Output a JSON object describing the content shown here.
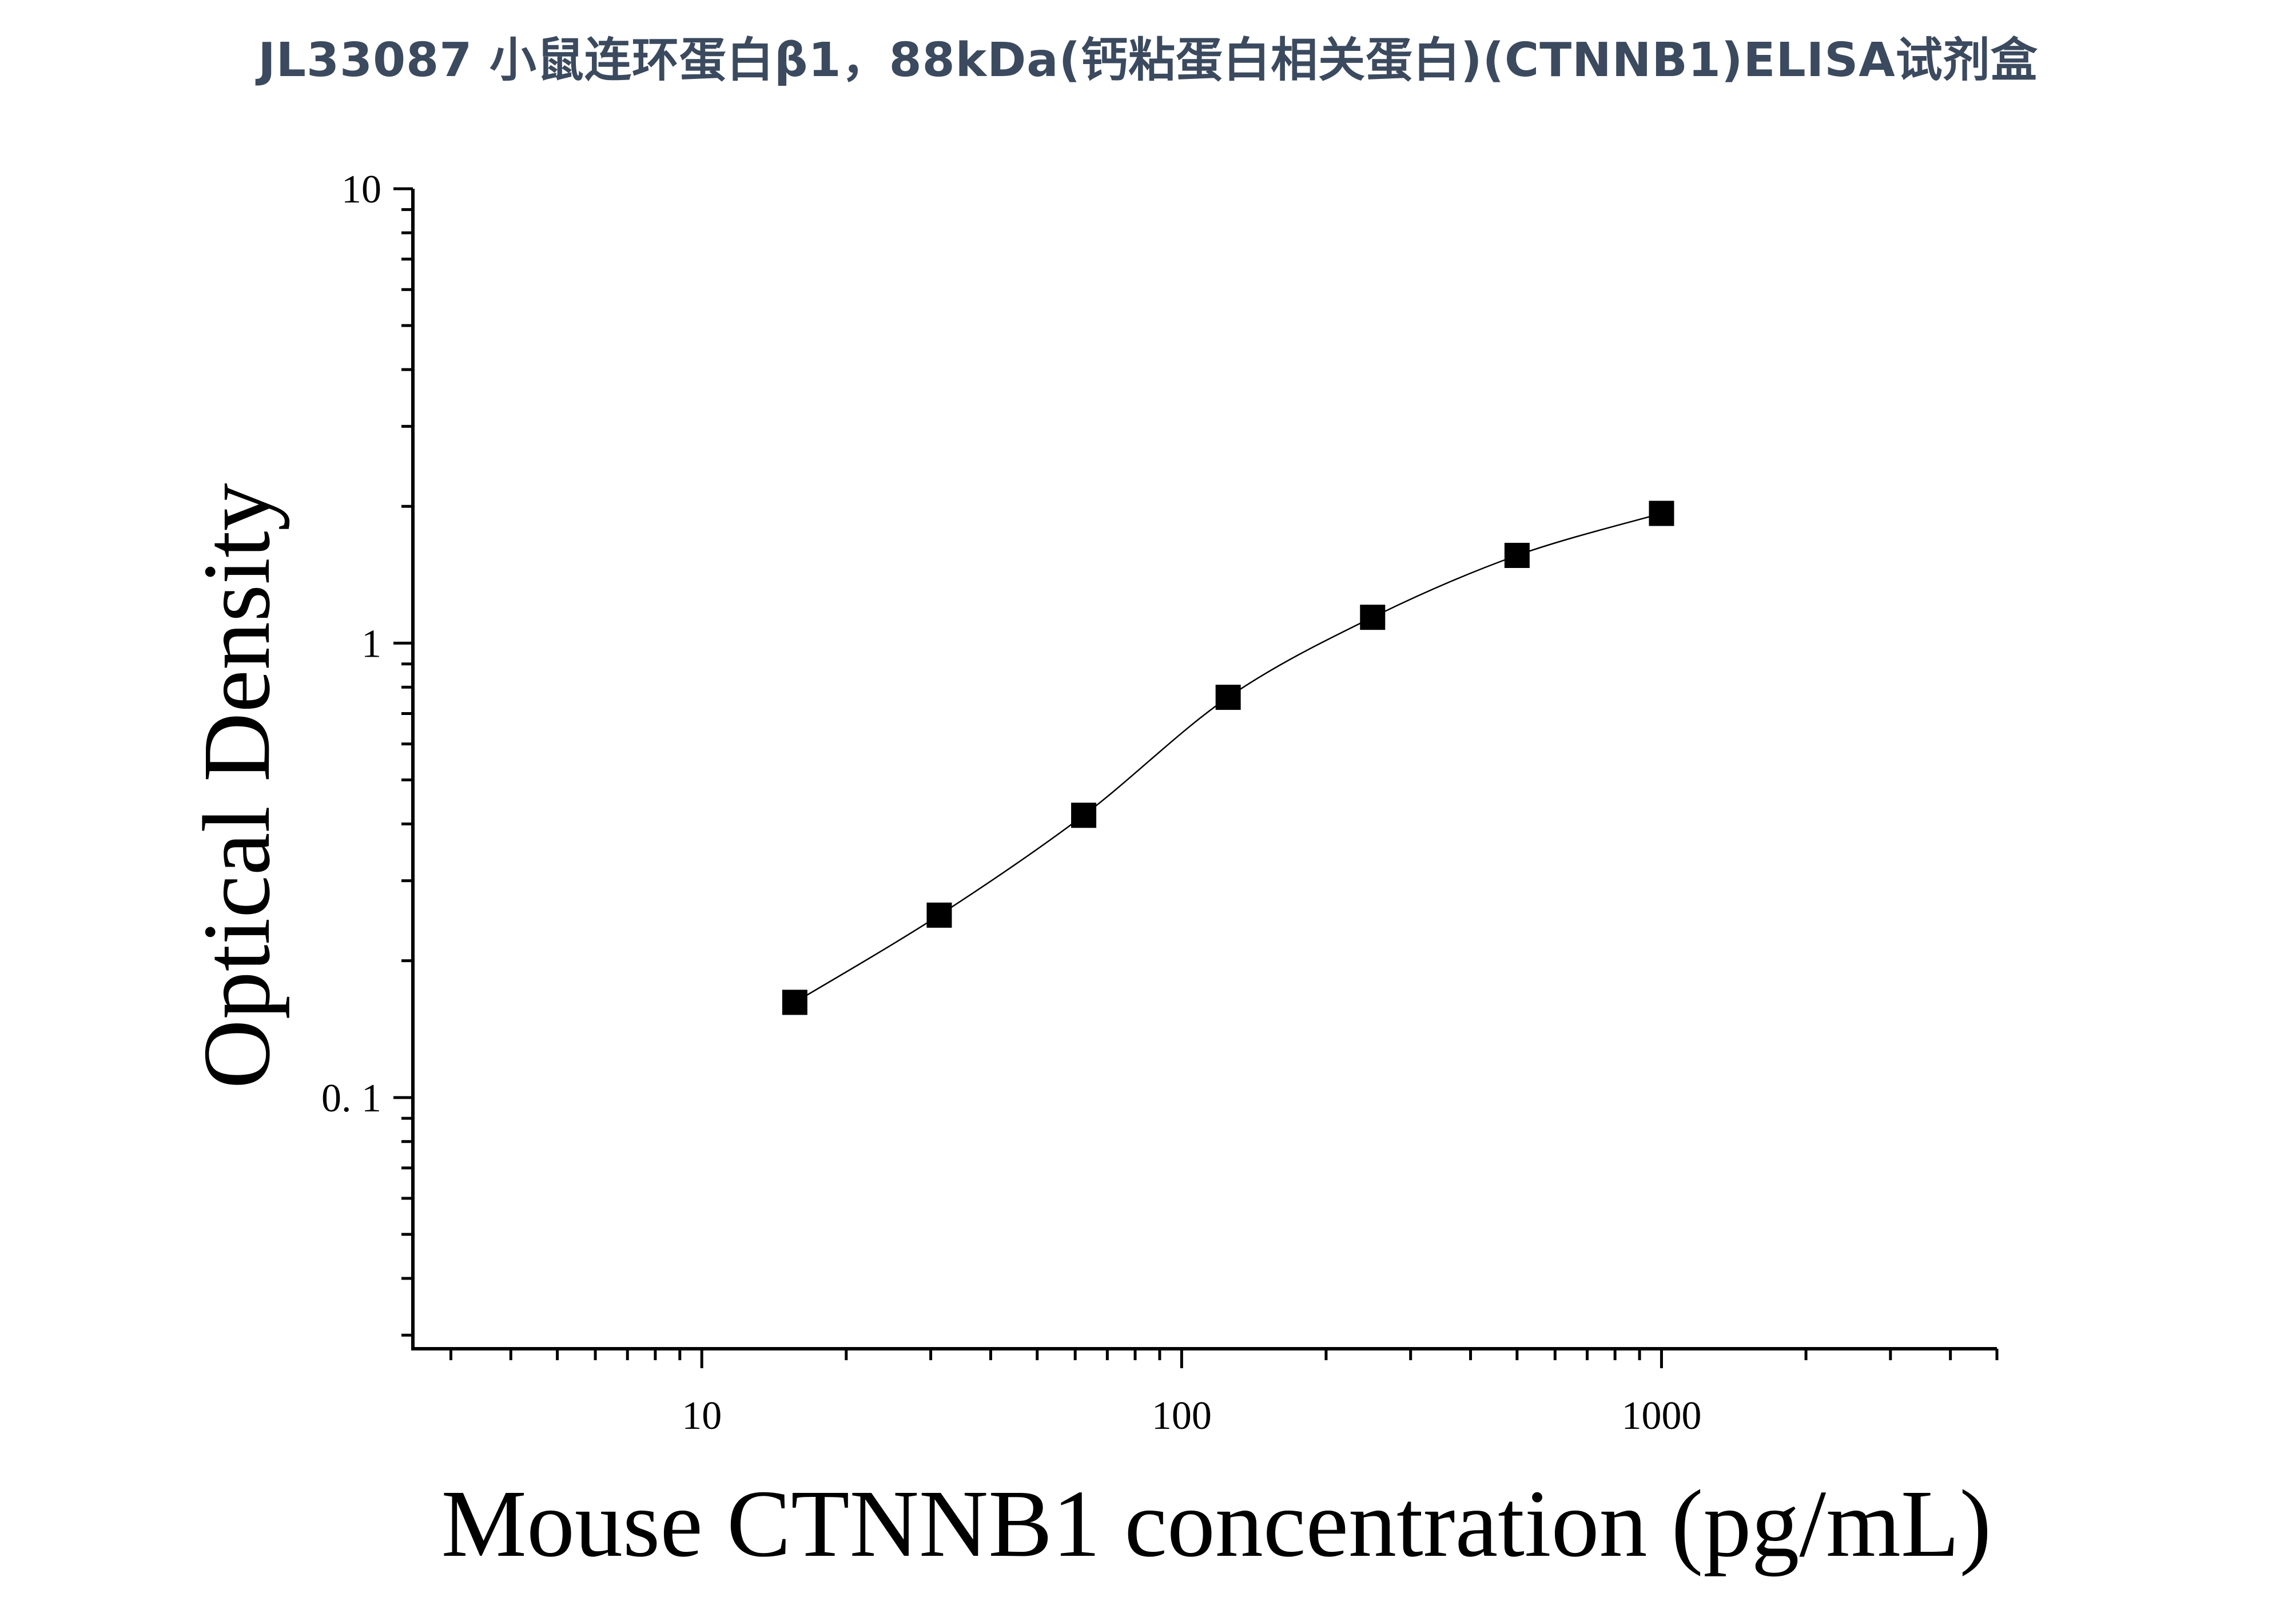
{
  "chart_data": {
    "type": "scatter",
    "title": "JL33087 小鼠连环蛋白β1，88kDa(钙粘蛋白相关蛋白)(CTNNB1)ELISA试剂盒",
    "xlabel": "Mouse CTNNB1 concentration (pg/mL)",
    "ylabel": "Optical Density",
    "xscale": "log",
    "yscale": "log",
    "xlim": [
      2.5,
      5000
    ],
    "ylim": [
      0.028,
      10
    ],
    "x_ticks": [
      {
        "value": 10,
        "label": "10"
      },
      {
        "value": 100,
        "label": "100"
      },
      {
        "value": 1000,
        "label": "1000"
      }
    ],
    "y_ticks": [
      {
        "value": 0.1,
        "label": "0. 1"
      },
      {
        "value": 1,
        "label": "1"
      },
      {
        "value": 10,
        "label": "10"
      }
    ],
    "grid": false,
    "legend": "none",
    "series": [
      {
        "x": [
          15.625,
          31.25,
          62.5,
          125,
          250,
          500,
          1000
        ],
        "y": [
          0.162,
          0.252,
          0.418,
          0.76,
          1.14,
          1.56,
          1.93
        ],
        "marker": "square",
        "color": "#000000",
        "fit_curve": true
      }
    ]
  }
}
